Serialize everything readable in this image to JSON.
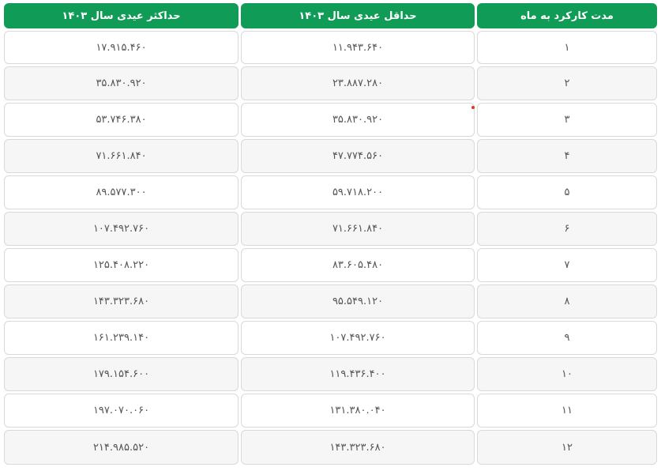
{
  "columns": [
    "مدت کارکرد به ماه",
    "حداقل عیدی سال ۱۴۰۳",
    "حداکثر عیدی سال ۱۴۰۳"
  ],
  "rows": [
    {
      "months": "۱",
      "min": "۱۱.۹۴۳.۶۴۰",
      "max": "۱۷.۹۱۵.۴۶۰"
    },
    {
      "months": "۲",
      "min": "۲۳.۸۸۷.۲۸۰",
      "max": "۳۵.۸۳۰.۹۲۰"
    },
    {
      "months": "۳",
      "min": "۳۵.۸۳۰.۹۲۰",
      "max": "۵۳.۷۴۶.۳۸۰"
    },
    {
      "months": "۴",
      "min": "۴۷.۷۷۴.۵۶۰",
      "max": "۷۱.۶۶۱.۸۴۰"
    },
    {
      "months": "۵",
      "min": "۵۹.۷۱۸.۲۰۰",
      "max": "۸۹.۵۷۷.۳۰۰"
    },
    {
      "months": "۶",
      "min": "۷۱.۶۶۱.۸۴۰",
      "max": "۱۰۷.۴۹۲.۷۶۰"
    },
    {
      "months": "۷",
      "min": "۸۳.۶۰۵.۴۸۰",
      "max": "۱۲۵.۴۰۸.۲۲۰"
    },
    {
      "months": "۸",
      "min": "۹۵.۵۴۹.۱۲۰",
      "max": "۱۴۳.۳۲۳.۶۸۰"
    },
    {
      "months": "۹",
      "min": "۱۰۷.۴۹۲.۷۶۰",
      "max": "۱۶۱.۲۳۹.۱۴۰"
    },
    {
      "months": "۱۰",
      "min": "۱۱۹.۴۳۶.۴۰۰",
      "max": "۱۷۹.۱۵۴.۶۰۰"
    },
    {
      "months": "۱۱",
      "min": "۱۳۱.۳۸۰.۰۴۰",
      "max": "۱۹۷.۰۷۰.۰۶۰"
    },
    {
      "months": "۱۲",
      "min": "۱۴۳.۳۲۳.۶۸۰",
      "max": "۲۱۴.۹۸۵.۵۲۰"
    }
  ],
  "colors": {
    "header_bg": "#109b57",
    "header_text": "#ffffff",
    "cell_text": "#555555",
    "row_alt_bg": "#f6f6f6",
    "border": "#d9d9d9"
  }
}
